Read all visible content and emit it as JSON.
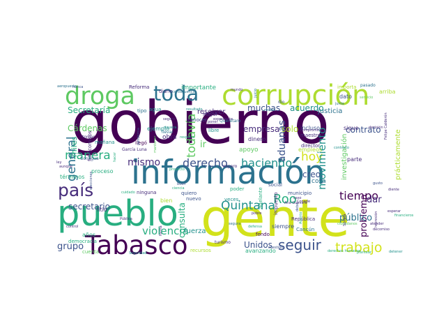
{
  "palette": {
    "c0": "#440154",
    "c1": "#472d7b",
    "c2": "#3b528b",
    "c3": "#2c728e",
    "c4": "#21918c",
    "c5": "#28ae80",
    "c6": "#5ec962",
    "c7": "#addc30",
    "c8": "#d2e21b"
  },
  "words": [
    {
      "text": "gobierno",
      "color": "c0"
    },
    {
      "text": "información",
      "color": "c3"
    },
    {
      "text": "gente",
      "color": "c8"
    },
    {
      "text": "pueblo",
      "color": "c5"
    },
    {
      "text": "corrupción",
      "color": "c7"
    },
    {
      "text": "droga",
      "color": "c6"
    },
    {
      "text": "Tabasco",
      "color": "c0"
    },
    {
      "text": "país",
      "color": "c1"
    },
    {
      "text": "toda",
      "color": "c3"
    },
    {
      "text": "Quintana",
      "color": "c4"
    },
    {
      "text": "Roo",
      "color": "c5"
    },
    {
      "text": "trabajo",
      "color": "c8"
    },
    {
      "text": "seguir",
      "color": "c2"
    },
    {
      "text": "derecho",
      "color": "c2"
    },
    {
      "text": "haciendo",
      "color": "c4"
    },
    {
      "text": "mismo",
      "color": "c1"
    },
    {
      "text": "manera",
      "color": "c5"
    },
    {
      "text": "todavía",
      "color": "c6"
    },
    {
      "text": "general",
      "color": "c3"
    },
    {
      "text": "tiempo",
      "color": "c0"
    },
    {
      "text": "hoy",
      "color": "c8"
    },
    {
      "text": "violencia",
      "color": "c5"
    },
    {
      "text": "grupo",
      "color": "c2"
    },
    {
      "text": "movimiento",
      "color": "c4"
    },
    {
      "text": "muchas",
      "color": "c2"
    },
    {
      "text": "acuerdo",
      "color": "c4"
    },
    {
      "text": "empresa",
      "color": "c1"
    },
    {
      "text": "contrato",
      "color": "c2"
    },
    {
      "text": "solo",
      "color": "c7"
    },
    {
      "text": "aduanas",
      "color": "c2"
    },
    {
      "text": "Secretaría",
      "color": "c5"
    },
    {
      "text": "Cárdenas",
      "color": "c6"
    },
    {
      "text": "secretario",
      "color": "c2"
    },
    {
      "text": "ir",
      "color": "c6"
    },
    {
      "text": "consulta",
      "color": "c5"
    },
    {
      "text": "problema",
      "color": "c0"
    },
    {
      "text": "dar",
      "color": "c1"
    },
    {
      "text": "creo",
      "color": "c2"
    },
    {
      "text": "público",
      "color": "c3"
    },
    {
      "text": "Unidos",
      "color": "c2"
    },
    {
      "text": "fuerza",
      "color": "c4"
    },
    {
      "text": "miles",
      "color": "c5"
    },
    {
      "text": "justicia",
      "color": "c3"
    },
    {
      "text": "importante",
      "color": "c5"
    },
    {
      "text": "investigación",
      "color": "c6"
    },
    {
      "text": "prácticamente",
      "color": "c7"
    },
    {
      "text": "empleos",
      "color": "c7"
    },
    {
      "text": "incluso",
      "color": "c2"
    },
    {
      "text": "maestro",
      "color": "c1"
    },
    {
      "text": "dinero",
      "color": "c1"
    },
    {
      "text": "apoyo",
      "color": "c6"
    },
    {
      "text": "resolver",
      "color": "c1"
    },
    {
      "text": "siempre",
      "color": "c2"
    },
    {
      "text": "cosa",
      "color": "c3"
    },
    {
      "text": "parte",
      "color": "c1"
    },
    {
      "text": "director",
      "color": "c1"
    },
    {
      "text": "sigue",
      "color": "c1"
    },
    {
      "text": "dato",
      "color": "c2"
    },
    {
      "text": "bien",
      "color": "c7"
    },
    {
      "text": "años",
      "color": "c5"
    },
    {
      "text": "litio",
      "color": "c1"
    },
    {
      "text": "ejemplo",
      "color": "c4"
    },
    {
      "text": "obra",
      "color": "c1"
    },
    {
      "text": "nuevo",
      "color": "c2"
    },
    {
      "text": "quiero",
      "color": "c2"
    },
    {
      "text": "ninguna",
      "color": "c1"
    },
    {
      "text": "llegó",
      "color": "c0"
    },
    {
      "text": "diario",
      "color": "c1"
    },
    {
      "text": "Reforma",
      "color": "c1"
    },
    {
      "text": "tipo",
      "color": "c3"
    },
    {
      "text": "agua",
      "color": "c4"
    },
    {
      "text": "mañana",
      "color": "c4"
    },
    {
      "text": "fideicomisos",
      "color": "c1"
    },
    {
      "text": "tomar",
      "color": "c1"
    },
    {
      "text": "democracia",
      "color": "c5"
    },
    {
      "text": "cuenta",
      "color": "c6"
    },
    {
      "text": "municipio",
      "color": "c2"
    },
    {
      "text": "impuesto",
      "color": "c1"
    },
    {
      "text": "República",
      "color": "c1"
    },
    {
      "text": "Cancún",
      "color": "c3"
    },
    {
      "text": "adelante",
      "color": "c5"
    },
    {
      "text": "fondo",
      "color": "c0"
    },
    {
      "text": "conocer",
      "color": "c2"
    },
    {
      "text": "Mayor",
      "color": "c1"
    },
    {
      "text": "libre",
      "color": "c4"
    },
    {
      "text": "poder",
      "color": "c5"
    },
    {
      "text": "veces",
      "color": "c4"
    },
    {
      "text": "social",
      "color": "c2"
    },
    {
      "text": "turismo",
      "color": "c1"
    },
    {
      "text": "avanzando",
      "color": "c5"
    },
    {
      "text": "recursos",
      "color": "c7"
    },
    {
      "text": "arriba",
      "color": "c7"
    },
    {
      "text": "importa",
      "color": "c7"
    },
    {
      "text": "pasado",
      "color": "c3"
    },
    {
      "text": "Pública",
      "color": "c1"
    },
    {
      "text": "términos",
      "color": "c5"
    },
    {
      "text": "Ana Guevara",
      "color": "c1"
    },
    {
      "text": "dio",
      "color": "c2"
    },
    {
      "text": "Querétaro",
      "color": "c3"
    },
    {
      "text": "Conagua",
      "color": "c2"
    },
    {
      "text": "proceso",
      "color": "c5"
    },
    {
      "text": "García Luna",
      "color": "c1"
    },
    {
      "text": "pandemia",
      "color": "c2"
    },
    {
      "text": "ciudadanos",
      "color": "c6"
    },
    {
      "text": "Sonora",
      "color": "c1"
    },
    {
      "text": "decomiso",
      "color": "c1"
    },
    {
      "text": "Seguridad",
      "color": "c4"
    },
    {
      "text": "derechos humanos",
      "color": "c5"
    },
    {
      "text": "expediente",
      "color": "c1"
    },
    {
      "text": "resultado",
      "color": "c4"
    },
    {
      "text": "aeropuerto",
      "color": "c3"
    },
    {
      "text": "nunca",
      "color": "c2"
    },
    {
      "text": "poner",
      "color": "c1"
    },
    {
      "text": "recibir",
      "color": "c3"
    },
    {
      "text": "llevar",
      "color": "c3"
    },
    {
      "text": "riqueza",
      "color": "c4"
    },
    {
      "text": "segura",
      "color": "c3"
    },
    {
      "text": "junta",
      "color": "c3"
    },
    {
      "text": "control",
      "color": "c1"
    },
    {
      "text": "atender",
      "color": "c1"
    },
    {
      "text": "decisión",
      "color": "c1"
    },
    {
      "text": "esperar",
      "color": "c1"
    },
    {
      "text": "pobre",
      "color": "c1"
    },
    {
      "text": "Conade",
      "color": "c1"
    },
    {
      "text": "caso",
      "color": "c1"
    },
    {
      "text": "debe",
      "color": "c2"
    },
    {
      "text": "cuestión",
      "color": "c2"
    },
    {
      "text": "consecuencia",
      "color": "c3"
    },
    {
      "text": "forma",
      "color": "c1"
    },
    {
      "text": "plantear",
      "color": "c5"
    },
    {
      "text": "detener",
      "color": "c4"
    },
    {
      "text": "contexto",
      "color": "c4"
    },
    {
      "text": "ley",
      "color": "c1"
    },
    {
      "text": "aunque",
      "color": "c1"
    },
    {
      "text": "diente",
      "color": "c1"
    },
    {
      "text": "Asunto",
      "color": "c5"
    },
    {
      "text": "compromiso",
      "color": "c1"
    },
    {
      "text": "seguro",
      "color": "c1"
    },
    {
      "text": "mundo",
      "color": "c1"
    },
    {
      "text": "servicio",
      "color": "c6"
    },
    {
      "text": "represión",
      "color": "c1"
    },
    {
      "text": "Felipe Calderón",
      "color": "c1"
    },
    {
      "text": "elecciones",
      "color": "c2"
    },
    {
      "text": "financieros",
      "color": "c5"
    },
    {
      "text": "cuidado",
      "color": "c5"
    },
    {
      "text": "ciencia",
      "color": "c5"
    },
    {
      "text": "buen",
      "color": "c2"
    },
    {
      "text": "defensa",
      "color": "c5"
    },
    {
      "text": "juicio",
      "color": "c3"
    },
    {
      "text": "hacer",
      "color": "c5"
    },
    {
      "text": "respecto",
      "color": "c5"
    },
    {
      "text": "mantener",
      "color": "c6"
    },
    {
      "text": "gusto",
      "color": "c2"
    },
    {
      "text": "proyecto",
      "color": "c5"
    },
    {
      "text": "espero",
      "color": "c1"
    }
  ]
}
